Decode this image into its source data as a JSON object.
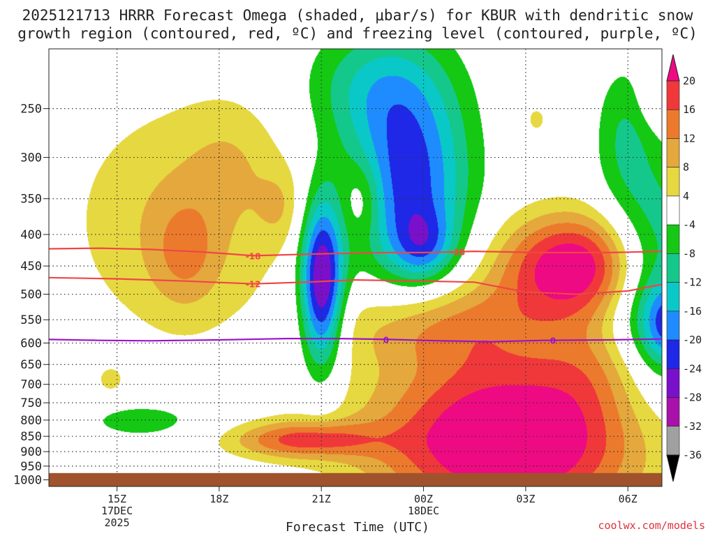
{
  "title_line1": "2025121713 HRRR Forecast Omega (shaded, μbar/s) for KBUR with dendritic snow",
  "title_line2": "growth region (contoured, red, ºC) and freezing level (contoured, purple, ºC)",
  "credit": "coolwx.com/models",
  "chart_data": {
    "type": "heatmap",
    "title": "2025121713 HRRR Forecast Omega (shaded, μbar/s) for KBUR with dendritic snow growth region (contoured, red, ºC) and freezing level (contoured, purple, ºC)",
    "xlabel": "Forecast Time (UTC)",
    "ylabel": "",
    "x_range_hours_utc": [
      13.0,
      31.0
    ],
    "x_ticks": [
      {
        "x": 15,
        "label": "15Z",
        "sub": [
          "17DEC",
          "2025"
        ]
      },
      {
        "x": 18,
        "label": "18Z",
        "sub": []
      },
      {
        "x": 21,
        "label": "21Z",
        "sub": []
      },
      {
        "x": 24,
        "label": "00Z",
        "sub": [
          "18DEC"
        ]
      },
      {
        "x": 27,
        "label": "03Z",
        "sub": []
      },
      {
        "x": 30,
        "label": "06Z",
        "sub": []
      }
    ],
    "y_axis": "pressure_hPa_log",
    "y_range": [
      1025,
      200
    ],
    "y_ticks": [
      250,
      300,
      350,
      400,
      450,
      500,
      550,
      600,
      650,
      700,
      750,
      800,
      850,
      900,
      950,
      1000
    ],
    "grid": true,
    "colorbar": {
      "ticks": [
        "20",
        "16",
        "12",
        "8",
        "4",
        "-4",
        "-8",
        "-12",
        "-16",
        "-20",
        "-24",
        "-28",
        "-32",
        "-36"
      ],
      "colors_top_to_bottom": [
        "#ee0a82",
        "#f0383a",
        "#ec7a2c",
        "#e4a83c",
        "#e6d840",
        "#ffffff",
        "#14c814",
        "#14c88c",
        "#0ac8c8",
        "#1e8cff",
        "#1e28e6",
        "#7a10cc",
        "#aa10aa",
        "#a0a0a0",
        "#000000"
      ]
    },
    "omega_levels": [
      {
        "threshold": 4,
        "color": "#e6d840"
      },
      {
        "threshold": 8,
        "color": "#e4a83c"
      },
      {
        "threshold": 12,
        "color": "#ec7a2c"
      },
      {
        "threshold": 16,
        "color": "#f0383a"
      },
      {
        "threshold": 20,
        "color": "#ee0a82"
      },
      {
        "threshold": -4,
        "color": "#14c814"
      },
      {
        "threshold": -8,
        "color": "#14c88c"
      },
      {
        "threshold": -12,
        "color": "#0ac8c8"
      },
      {
        "threshold": -16,
        "color": "#1e8cff"
      },
      {
        "threshold": -20,
        "color": "#1e28e6"
      },
      {
        "threshold": -24,
        "color": "#7a10cc"
      }
    ],
    "omega_features": [
      {
        "x": 16.8,
        "p": 380,
        "sx": 2.3,
        "sy": 0.32,
        "amp": 8
      },
      {
        "x": 18.4,
        "p": 300,
        "sx": 1.0,
        "sy": 0.16,
        "amp": 4
      },
      {
        "x": 17.0,
        "p": 430,
        "sx": 0.7,
        "sy": 0.14,
        "amp": 7
      },
      {
        "x": 19.8,
        "p": 360,
        "sx": 0.5,
        "sy": 0.1,
        "amp": 5
      },
      {
        "x": 14.8,
        "p": 690,
        "sx": 0.3,
        "sy": 0.04,
        "amp": 5
      },
      {
        "x": 22.2,
        "p": 350,
        "sx": 0.4,
        "sy": 0.1,
        "amp": 7
      },
      {
        "x": 21.0,
        "p": 480,
        "sx": 0.45,
        "sy": 0.22,
        "amp": -30
      },
      {
        "x": 23.6,
        "p": 330,
        "sx": 1.2,
        "sy": 0.28,
        "amp": -22
      },
      {
        "x": 24.0,
        "p": 415,
        "sx": 0.6,
        "sy": 0.09,
        "amp": -10
      },
      {
        "x": 22.5,
        "p": 230,
        "sx": 1.4,
        "sy": 0.16,
        "amp": -10
      },
      {
        "x": 30.7,
        "p": 480,
        "sx": 1.0,
        "sy": 0.3,
        "amp": -17
      },
      {
        "x": 31.2,
        "p": 560,
        "sx": 0.5,
        "sy": 0.1,
        "amp": -14
      },
      {
        "x": 29.9,
        "p": 270,
        "sx": 0.6,
        "sy": 0.18,
        "amp": -7
      },
      {
        "x": 15.8,
        "p": 800,
        "sx": 1.5,
        "sy": 0.06,
        "amp": -6
      },
      {
        "x": 28.5,
        "p": 450,
        "sx": 1.6,
        "sy": 0.14,
        "amp": 25
      },
      {
        "x": 26.5,
        "p": 860,
        "sx": 2.8,
        "sy": 0.22,
        "amp": 28
      },
      {
        "x": 24.5,
        "p": 560,
        "sx": 2.2,
        "sy": 0.12,
        "amp": 12
      },
      {
        "x": 20.4,
        "p": 860,
        "sx": 1.5,
        "sy": 0.05,
        "amp": 16
      },
      {
        "x": 29.2,
        "p": 650,
        "sx": 1.2,
        "sy": 0.12,
        "amp": 6
      },
      {
        "x": 27.3,
        "p": 260,
        "sx": 0.3,
        "sy": 0.05,
        "amp": 5
      },
      {
        "x": 31.0,
        "p": 240,
        "sx": 0.5,
        "sy": 0.08,
        "amp": 6
      }
    ],
    "contours": [
      {
        "label": "-18",
        "color": "#f04646",
        "points": [
          [
            13.0,
            422
          ],
          [
            14.5,
            421
          ],
          [
            16,
            423
          ],
          [
            17.5,
            427
          ],
          [
            19.0,
            433
          ],
          [
            21,
            430
          ],
          [
            23,
            428
          ],
          [
            24.0,
            428
          ],
          [
            25.5,
            426
          ],
          [
            27.5,
            428
          ],
          [
            29.5,
            428
          ],
          [
            31.0,
            426
          ]
        ],
        "labels_at": [
          19.0,
          25.0
        ]
      },
      {
        "label": "-12",
        "color": "#f04646",
        "points": [
          [
            13.0,
            470
          ],
          [
            15,
            472
          ],
          [
            17,
            476
          ],
          [
            19.0,
            481
          ],
          [
            20.5,
            478
          ],
          [
            22,
            474
          ],
          [
            24,
            476
          ],
          [
            25.5,
            478
          ],
          [
            27,
            496
          ],
          [
            28.5,
            500
          ],
          [
            30,
            494
          ],
          [
            31.0,
            482
          ]
        ],
        "labels_at": [
          19.0
        ]
      },
      {
        "label": "0",
        "color": "#9a14c8",
        "points": [
          [
            13.0,
            592
          ],
          [
            14.5,
            594
          ],
          [
            16,
            595
          ],
          [
            18,
            593
          ],
          [
            20,
            590
          ],
          [
            21.5,
            590
          ],
          [
            23,
            592
          ],
          [
            24.5,
            595
          ],
          [
            26,
            597
          ],
          [
            27.5,
            594
          ],
          [
            29.5,
            593
          ],
          [
            31.0,
            591
          ]
        ],
        "labels_at": [
          22.9,
          27.8
        ]
      }
    ],
    "ground": {
      "p_top": 975,
      "color": "#a0522d"
    }
  }
}
